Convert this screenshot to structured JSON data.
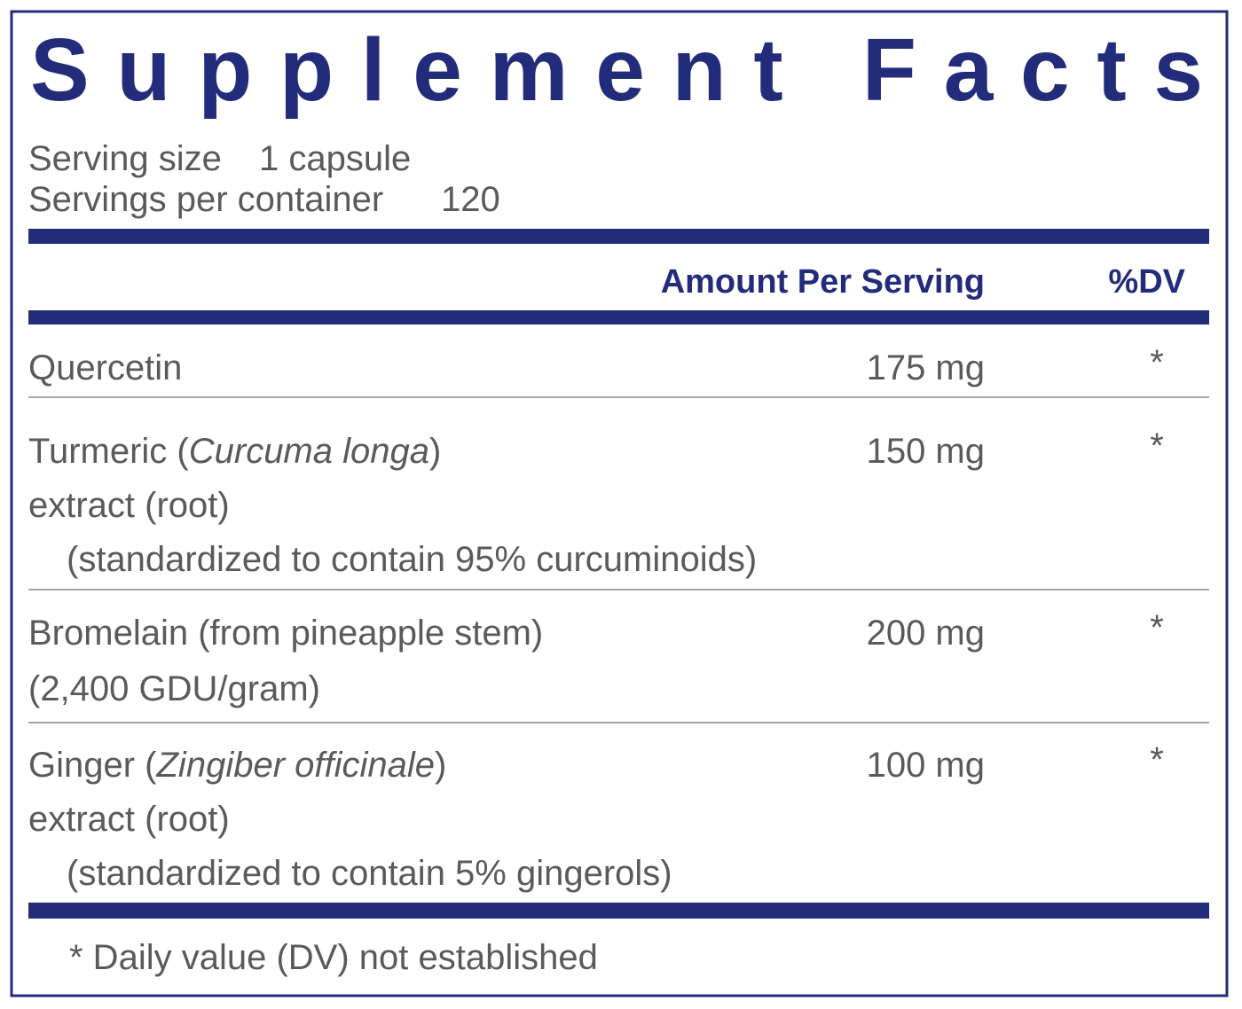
{
  "title": "Supplement Facts",
  "serving": [
    {
      "label": "Serving size",
      "value": "1 capsule"
    },
    {
      "label": "Servings per container",
      "value": "120"
    }
  ],
  "header": {
    "amount": "Amount Per Serving",
    "dv": "%DV"
  },
  "rows": [
    {
      "lines": [
        [
          {
            "text": "Quercetin"
          }
        ]
      ],
      "amount": "175 mg",
      "dv": "*"
    },
    {
      "lines": [
        [
          {
            "text": "Turmeric ("
          },
          {
            "text": "Curcuma longa",
            "italic": true
          },
          {
            "text": ")"
          }
        ],
        [
          {
            "text": "extract (root)"
          }
        ],
        [
          {
            "text": "(standardized to contain 95% curcuminoids)"
          }
        ]
      ],
      "amount": "150 mg",
      "dv": "*"
    },
    {
      "lines": [
        [
          {
            "text": "Bromelain (from pineapple stem)"
          }
        ],
        [
          {
            "text": "(2,400 GDU/gram)"
          }
        ]
      ],
      "amount": "200 mg",
      "dv": "*"
    },
    {
      "lines": [
        [
          {
            "text": "Ginger ("
          },
          {
            "text": "Zingiber officinale",
            "italic": true
          },
          {
            "text": ")"
          }
        ],
        [
          {
            "text": "extract (root)"
          }
        ],
        [
          {
            "text": "(standardized to contain 5% gingerols)"
          }
        ]
      ],
      "amount": "100 mg",
      "dv": "*"
    }
  ],
  "footnote": "* Daily value (DV) not established"
}
